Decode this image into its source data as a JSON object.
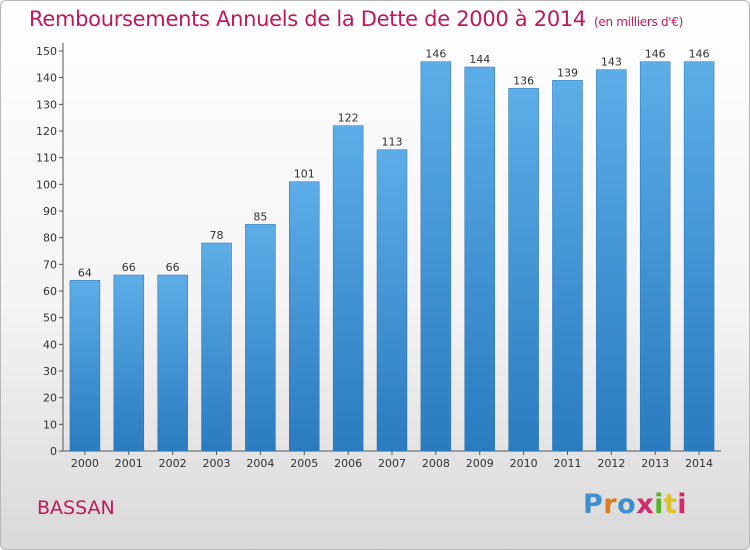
{
  "chart_data": {
    "type": "bar",
    "title": "Remboursements Annuels de la Dette de 2000 à 2014",
    "subtitle": "(en milliers d'€)",
    "categories": [
      "2000",
      "2001",
      "2002",
      "2003",
      "2004",
      "2005",
      "2006",
      "2007",
      "2008",
      "2009",
      "2010",
      "2011",
      "2012",
      "2013",
      "2014"
    ],
    "values": [
      64,
      66,
      66,
      78,
      85,
      101,
      122,
      113,
      146,
      144,
      136,
      139,
      143,
      146,
      146
    ],
    "xlabel": "",
    "ylabel": "",
    "ylim": [
      0,
      150
    ],
    "yticks": [
      0,
      10,
      20,
      30,
      40,
      50,
      60,
      70,
      80,
      90,
      100,
      110,
      120,
      130,
      140,
      150
    ],
    "grid": false,
    "bar_color": "#3a8fd6"
  },
  "footer": {
    "commune": "BASSAN",
    "logo": "Proxiti",
    "logo_letters": [
      "P",
      "r",
      "o",
      "x",
      "i",
      "t",
      "i"
    ],
    "logo_colors": [
      "#3d8fd0",
      "#e07b1f",
      "#3d8fd0",
      "#d22a6a",
      "#5bb02d",
      "#e0c21f",
      "#d22a6a"
    ]
  }
}
